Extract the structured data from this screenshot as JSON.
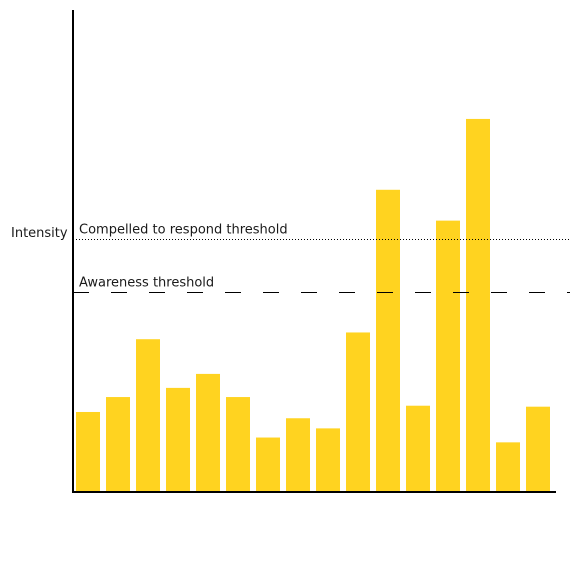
{
  "chart_data": {
    "type": "bar",
    "title": "",
    "xlabel": "",
    "ylabel": "Intensity",
    "ylim": [
      0,
      100
    ],
    "grid": false,
    "legend": "none",
    "bar_color": "#FFD320",
    "values": [
      16.6,
      19.7,
      31.7,
      21.6,
      24.5,
      19.7,
      11.3,
      15.3,
      13.2,
      33.1,
      62.7,
      17.9,
      56.3,
      77.4,
      10.3,
      17.7
    ],
    "thresholds": [
      {
        "label": "Compelled to respond threshold",
        "value": 52.5,
        "style": "dotted"
      },
      {
        "label": "Awareness threshold",
        "value": 41.4,
        "style": "dashed"
      }
    ]
  }
}
